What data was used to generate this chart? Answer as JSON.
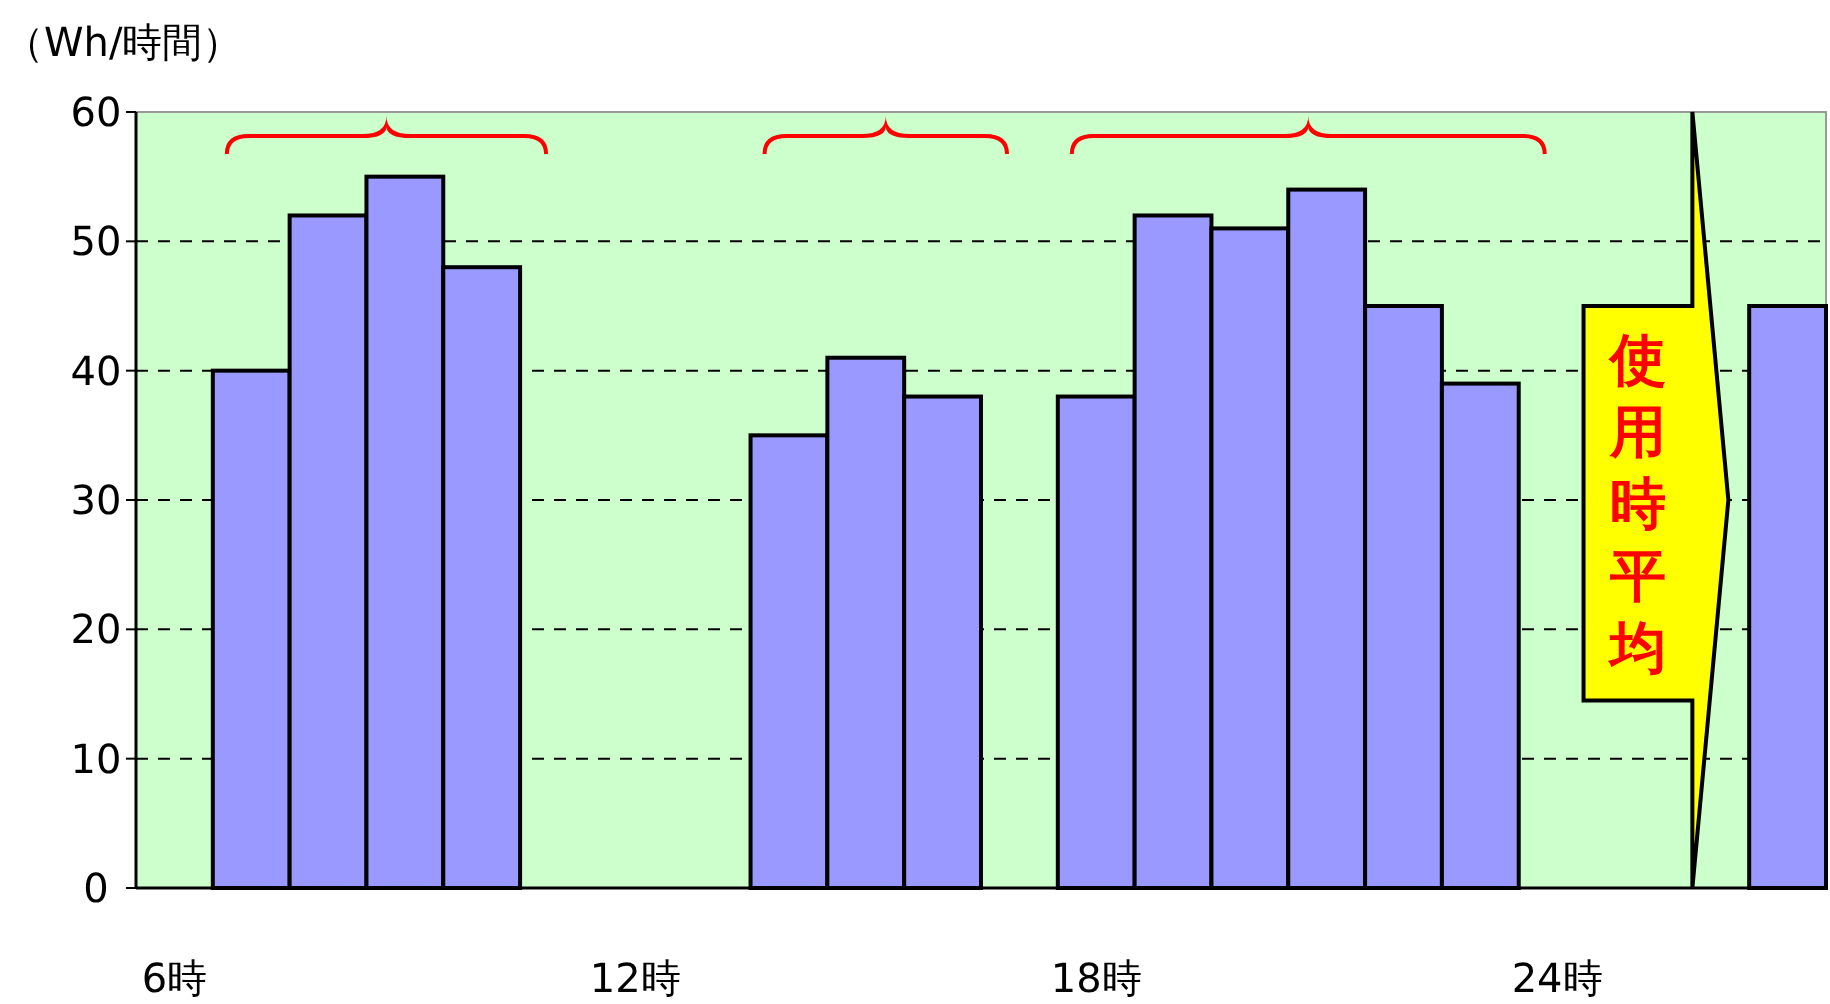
{
  "chart_data": {
    "type": "bar",
    "ylabel": "（Wh/時間）",
    "categories": [
      "6時",
      null,
      null,
      null,
      null,
      null,
      "12時",
      null,
      null,
      null,
      null,
      null,
      "18時",
      null,
      null,
      null,
      null,
      null,
      "24時",
      null,
      null,
      null
    ],
    "values": [
      null,
      40,
      52,
      55,
      48,
      null,
      null,
      null,
      35,
      41,
      38,
      null,
      38,
      52,
      51,
      54,
      45,
      39,
      null,
      null,
      null,
      45
    ],
    "color": "#9999ff",
    "ylim": [
      0,
      60
    ],
    "yticks": [
      0,
      10,
      20,
      30,
      40,
      50,
      60
    ],
    "grid": "y",
    "annotations": [
      "使用時平均"
    ]
  }
}
